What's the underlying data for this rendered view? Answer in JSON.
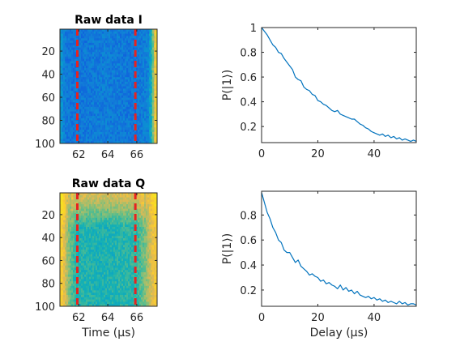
{
  "chart_data": [
    {
      "type": "heatmap",
      "title": "Raw data I",
      "xlabel": "",
      "ylabel": "",
      "xlim": [
        60.7,
        67.4
      ],
      "ylim": [
        1,
        100
      ],
      "x_ticks": [
        62,
        64,
        66
      ],
      "y_ticks": [
        20,
        40,
        60,
        80,
        100
      ],
      "y_reversed": true,
      "colormap": "parula",
      "markers": [
        {
          "type": "vertical-dashed-line",
          "x": 61.9,
          "color": "#e8221f"
        },
        {
          "type": "vertical-dashed-line",
          "x": 65.9,
          "color": "#e8221f"
        }
      ],
      "profile": {
        "x": [
          60.7,
          60.95,
          61.2,
          62.0,
          64.0,
          66.0,
          66.8,
          67.05,
          67.4
        ],
        "level": [
          0.3,
          0.22,
          0.18,
          0.18,
          0.2,
          0.18,
          0.22,
          0.45,
          0.92
        ],
        "noise": 0.06
      }
    },
    {
      "type": "line",
      "xlabel": "",
      "ylabel": "P(|1⟩)",
      "xlim": [
        0,
        55
      ],
      "ylim": [
        0.07,
        1.0
      ],
      "x_ticks": [
        0,
        20,
        40
      ],
      "y_ticks": [
        0.2,
        0.4,
        0.6,
        0.8,
        1
      ],
      "y_tick_labels": [
        "0.2",
        "0.4",
        "0.6",
        "0.8",
        "1"
      ],
      "series": [
        {
          "color": "#0072bd",
          "x": [
            0,
            1,
            2,
            3,
            4,
            5,
            6,
            7,
            8,
            9,
            10,
            11,
            12,
            13,
            14,
            15,
            16,
            17,
            18,
            19,
            20,
            21,
            22,
            23,
            24,
            25,
            26,
            27,
            28,
            29,
            30,
            31,
            32,
            33,
            34,
            35,
            36,
            37,
            38,
            39,
            40,
            41,
            42,
            43,
            44,
            45,
            46,
            47,
            48,
            49,
            50,
            51,
            52,
            53,
            54,
            55
          ],
          "y": [
            1.0,
            0.97,
            0.94,
            0.9,
            0.86,
            0.84,
            0.8,
            0.79,
            0.75,
            0.72,
            0.69,
            0.66,
            0.6,
            0.58,
            0.57,
            0.52,
            0.5,
            0.49,
            0.46,
            0.45,
            0.41,
            0.4,
            0.38,
            0.37,
            0.35,
            0.33,
            0.32,
            0.33,
            0.3,
            0.29,
            0.28,
            0.27,
            0.26,
            0.26,
            0.24,
            0.22,
            0.21,
            0.19,
            0.18,
            0.16,
            0.15,
            0.14,
            0.13,
            0.14,
            0.12,
            0.13,
            0.11,
            0.12,
            0.1,
            0.11,
            0.09,
            0.1,
            0.09,
            0.08,
            0.09,
            0.08
          ]
        }
      ]
    },
    {
      "type": "heatmap",
      "title": "Raw data Q",
      "xlabel": "Time (μs)",
      "ylabel": "",
      "xlim": [
        60.7,
        67.4
      ],
      "ylim": [
        1,
        100
      ],
      "x_ticks": [
        62,
        64,
        66
      ],
      "y_ticks": [
        20,
        40,
        60,
        80,
        100
      ],
      "y_reversed": true,
      "colormap": "parula",
      "markers": [
        {
          "type": "vertical-dashed-line",
          "x": 61.9,
          "color": "#e8221f"
        },
        {
          "type": "vertical-dashed-line",
          "x": 65.9,
          "color": "#e8221f"
        }
      ],
      "profile": {
        "x": [
          60.7,
          61.0,
          61.3,
          61.8,
          64.0,
          66.0,
          66.6,
          67.0,
          67.4
        ],
        "level": [
          0.85,
          0.72,
          0.55,
          0.42,
          0.4,
          0.44,
          0.55,
          0.7,
          0.8
        ],
        "top_rows_boost": 0.28,
        "noise": 0.06
      }
    },
    {
      "type": "line",
      "xlabel": "Delay (μs)",
      "ylabel": "P(|1⟩)",
      "xlim": [
        0,
        55
      ],
      "ylim": [
        0.07,
        0.99
      ],
      "x_ticks": [
        0,
        20,
        40
      ],
      "y_ticks": [
        0.2,
        0.4,
        0.6,
        0.8
      ],
      "y_tick_labels": [
        "0.2",
        "0.4",
        "0.6",
        "0.8"
      ],
      "series": [
        {
          "color": "#0072bd",
          "x": [
            0,
            1,
            2,
            3,
            4,
            5,
            6,
            7,
            8,
            9,
            10,
            11,
            12,
            13,
            14,
            15,
            16,
            17,
            18,
            19,
            20,
            21,
            22,
            23,
            24,
            25,
            26,
            27,
            28,
            29,
            30,
            31,
            32,
            33,
            34,
            35,
            36,
            37,
            38,
            39,
            40,
            41,
            42,
            43,
            44,
            45,
            46,
            47,
            48,
            49,
            50,
            51,
            52,
            53,
            54,
            55
          ],
          "y": [
            0.98,
            0.9,
            0.82,
            0.77,
            0.7,
            0.66,
            0.6,
            0.58,
            0.52,
            0.5,
            0.5,
            0.46,
            0.42,
            0.44,
            0.39,
            0.37,
            0.35,
            0.32,
            0.33,
            0.31,
            0.3,
            0.27,
            0.28,
            0.25,
            0.26,
            0.24,
            0.23,
            0.21,
            0.24,
            0.2,
            0.22,
            0.19,
            0.2,
            0.17,
            0.19,
            0.16,
            0.15,
            0.14,
            0.15,
            0.13,
            0.14,
            0.12,
            0.13,
            0.11,
            0.12,
            0.1,
            0.11,
            0.1,
            0.09,
            0.11,
            0.09,
            0.1,
            0.08,
            0.09,
            0.09,
            0.08
          ]
        }
      ]
    }
  ]
}
